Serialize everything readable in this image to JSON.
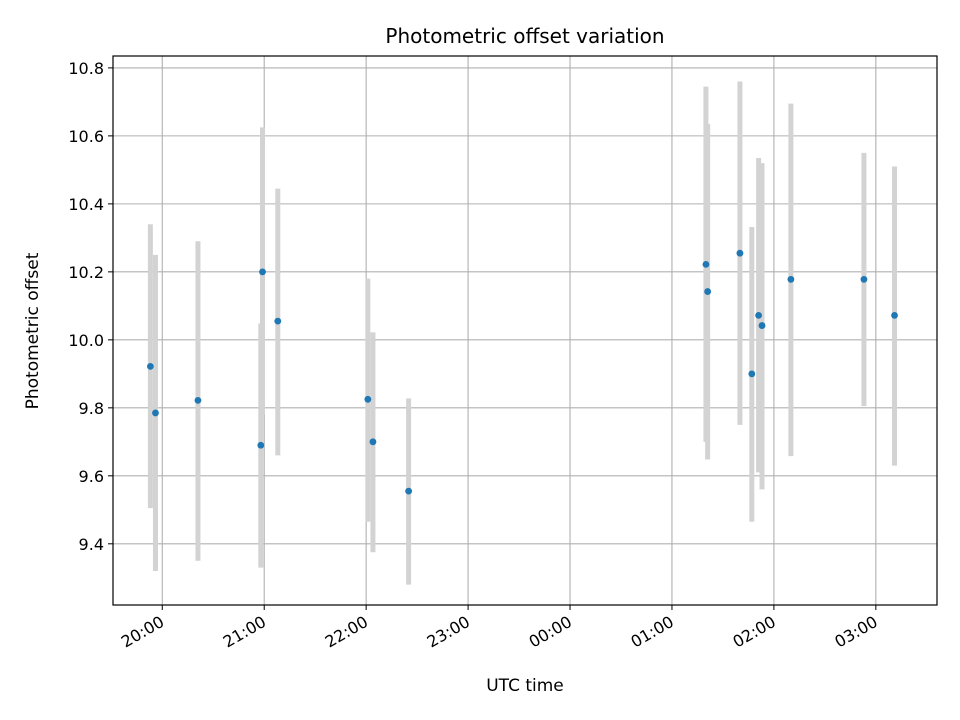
{
  "chart_data": {
    "type": "scatter",
    "title": "Photometric offset variation",
    "xlabel": "UTC time",
    "ylabel": "Photometric offset",
    "xlim": [
      "19:31",
      "03:36"
    ],
    "ylim": [
      9.22,
      10.835
    ],
    "grid": true,
    "x_ticks": [
      "20:00",
      "21:00",
      "22:00",
      "23:00",
      "00:00",
      "01:00",
      "02:00",
      "03:00"
    ],
    "y_ticks": [
      "9.4",
      "9.6",
      "9.8",
      "10.0",
      "10.2",
      "10.4",
      "10.6",
      "10.8"
    ],
    "colors": {
      "point": "#1f77b4",
      "errorbar": "#d3d3d3",
      "grid": "#b0b0b0"
    },
    "series": [
      {
        "x": [
          "19:53",
          "19:56",
          "20:21",
          "20:58",
          "20:59",
          "21:08",
          "22:01",
          "22:04",
          "22:25",
          "01:20",
          "01:21",
          "01:40",
          "01:47",
          "01:51",
          "01:53",
          "02:10",
          "02:53",
          "03:11"
        ],
        "y": [
          9.922,
          9.785,
          9.822,
          9.69,
          10.2,
          10.055,
          9.825,
          9.7,
          9.555,
          10.222,
          10.142,
          10.255,
          9.9,
          10.072,
          10.042,
          10.178,
          10.178,
          10.072
        ],
        "yerr_low": [
          9.505,
          9.32,
          9.35,
          9.33,
          9.78,
          9.66,
          9.465,
          9.375,
          9.28,
          9.7,
          9.648,
          9.75,
          9.465,
          9.61,
          9.56,
          9.658,
          9.805,
          9.63
        ],
        "yerr_high": [
          10.34,
          10.25,
          10.29,
          10.048,
          10.625,
          10.445,
          10.18,
          10.022,
          9.828,
          10.745,
          10.635,
          10.76,
          10.332,
          10.535,
          10.52,
          10.695,
          10.55,
          10.51
        ]
      }
    ]
  }
}
